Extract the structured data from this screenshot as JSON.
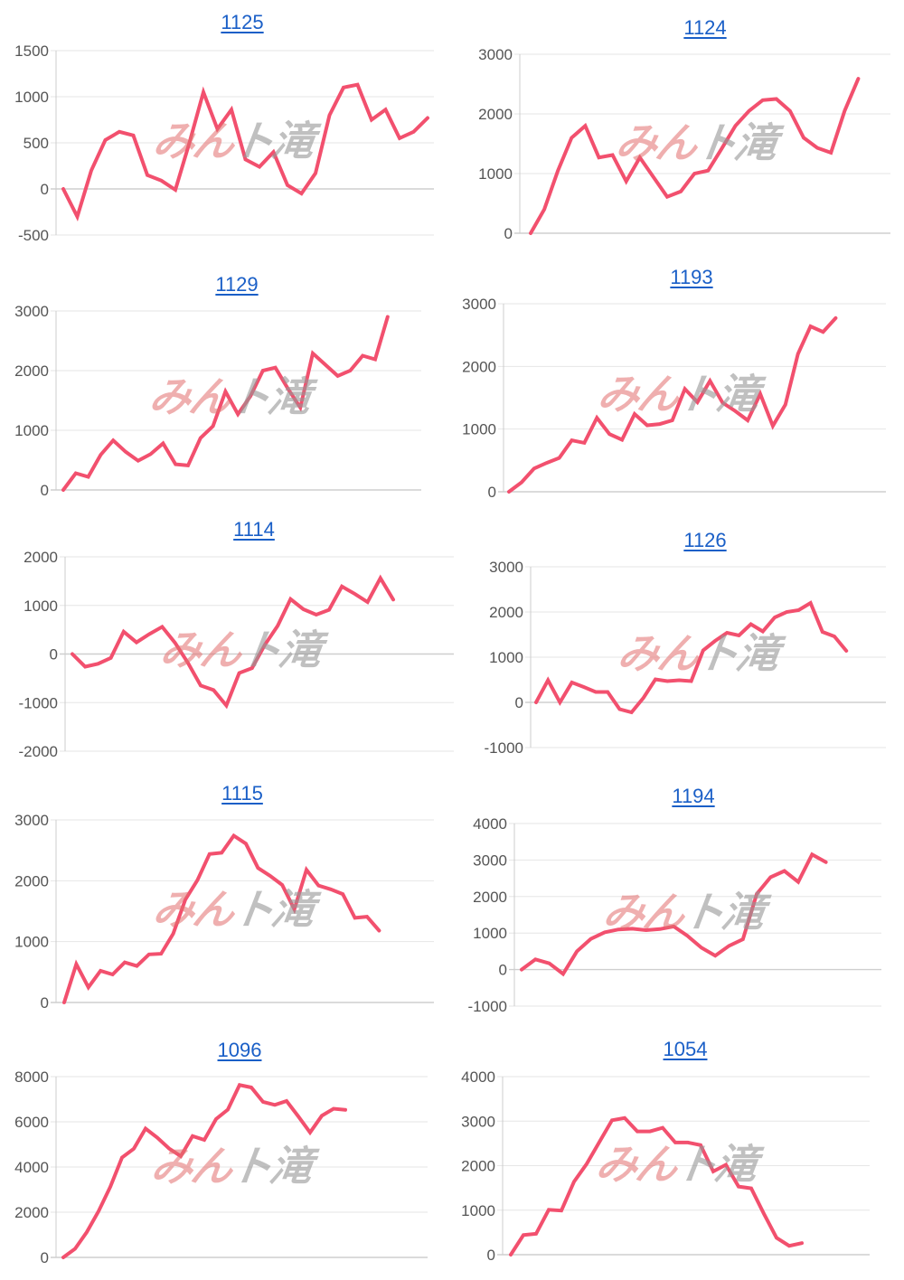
{
  "colors": {
    "line": "#f2506e",
    "grid": "#e6e6e6",
    "axis": "#cccccc",
    "tick_text": "#555555",
    "title_link": "#1a5fc7"
  },
  "watermark": {
    "part1": "みん",
    "part2": "ト滝"
  },
  "chart_data": [
    {
      "type": "line",
      "title": "1125",
      "yticks": [
        "1500",
        "1000",
        "500",
        "0",
        "-500"
      ],
      "ylim": [
        -500,
        1500
      ],
      "series": [
        {
          "name": "1125",
          "values": [
            0,
            -300,
            200,
            530,
            620,
            580,
            150,
            90,
            -10,
            500,
            1050,
            650,
            860,
            320,
            240,
            400,
            40,
            -50,
            170,
            800,
            1100,
            1130,
            750,
            860,
            550,
            620,
            770
          ]
        }
      ]
    },
    {
      "type": "line",
      "title": "1124",
      "yticks": [
        "3000",
        "2000",
        "1000",
        "0"
      ],
      "ylim": [
        0,
        3000
      ],
      "series": [
        {
          "name": "1124",
          "values": [
            0,
            400,
            1050,
            1600,
            1800,
            1270,
            1310,
            870,
            1270,
            940,
            610,
            700,
            1000,
            1050,
            1420,
            1800,
            2050,
            2230,
            2250,
            2050,
            1600,
            1430,
            1350,
            2050,
            2590
          ]
        }
      ]
    },
    {
      "type": "line",
      "title": "1129",
      "yticks": [
        "3000",
        "2000",
        "1000",
        "0"
      ],
      "ylim": [
        0,
        3000
      ],
      "series": [
        {
          "name": "1129",
          "values": [
            0,
            280,
            220,
            590,
            830,
            640,
            490,
            600,
            780,
            430,
            410,
            870,
            1070,
            1650,
            1270,
            1570,
            2000,
            2050,
            1700,
            1380,
            2290,
            2100,
            1910,
            2000,
            2250,
            2190,
            2900
          ]
        }
      ]
    },
    {
      "type": "line",
      "title": "1193",
      "yticks": [
        "3000",
        "2000",
        "1000",
        "0"
      ],
      "ylim": [
        0,
        3000
      ],
      "series": [
        {
          "name": "1193",
          "values": [
            0,
            150,
            370,
            460,
            540,
            820,
            780,
            1180,
            920,
            830,
            1240,
            1060,
            1080,
            1140,
            1640,
            1430,
            1770,
            1420,
            1290,
            1140,
            1560,
            1050,
            1390,
            2200,
            2640,
            2550,
            2770
          ]
        }
      ]
    },
    {
      "type": "line",
      "title": "1114",
      "yticks": [
        "2000",
        "1000",
        "0",
        "-1000",
        "-2000"
      ],
      "ylim": [
        -2000,
        2000
      ],
      "series": [
        {
          "name": "1114",
          "values": [
            0,
            -260,
            -200,
            -80,
            460,
            240,
            410,
            560,
            230,
            -180,
            -650,
            -740,
            -1060,
            -390,
            -290,
            190,
            580,
            1130,
            920,
            810,
            910,
            1390,
            1240,
            1070,
            1560,
            1120
          ]
        }
      ]
    },
    {
      "type": "line",
      "title": "1126",
      "yticks": [
        "3000",
        "2000",
        "1000",
        "0",
        "-1000"
      ],
      "ylim": [
        -1000,
        3000
      ],
      "series": [
        {
          "name": "1126",
          "values": [
            0,
            490,
            0,
            440,
            340,
            230,
            230,
            -150,
            -220,
            100,
            510,
            470,
            490,
            470,
            1150,
            1360,
            1540,
            1480,
            1730,
            1570,
            1880,
            2000,
            2040,
            2200,
            1560,
            1460,
            1140
          ]
        }
      ]
    },
    {
      "type": "line",
      "title": "1115",
      "yticks": [
        "3000",
        "2000",
        "1000",
        "0"
      ],
      "ylim": [
        0,
        3000
      ],
      "series": [
        {
          "name": "1115",
          "values": [
            0,
            630,
            250,
            520,
            460,
            660,
            600,
            790,
            800,
            1130,
            1690,
            2010,
            2440,
            2460,
            2740,
            2610,
            2210,
            2080,
            1930,
            1530,
            2180,
            1920,
            1860,
            1780,
            1390,
            1410,
            1180
          ]
        }
      ]
    },
    {
      "type": "line",
      "title": "1194",
      "yticks": [
        "4000",
        "3000",
        "2000",
        "1000",
        "0",
        "-1000"
      ],
      "ylim": [
        -1000,
        4000
      ],
      "series": [
        {
          "name": "1194",
          "values": [
            0,
            280,
            170,
            -120,
            500,
            840,
            1020,
            1100,
            1120,
            1080,
            1110,
            1180,
            920,
            600,
            380,
            650,
            830,
            2070,
            2530,
            2700,
            2400,
            3150,
            2940
          ]
        }
      ]
    },
    {
      "type": "line",
      "title": "1096",
      "yticks": [
        "8000",
        "6000",
        "4000",
        "2000",
        "0"
      ],
      "ylim": [
        0,
        8000
      ],
      "series": [
        {
          "name": "1096",
          "values": [
            0,
            380,
            1120,
            2040,
            3120,
            4420,
            4810,
            5700,
            5300,
            4820,
            4480,
            5370,
            5200,
            6120,
            6540,
            7630,
            7520,
            6880,
            6750,
            6920,
            6240,
            5530,
            6270,
            6580,
            6530
          ]
        }
      ]
    },
    {
      "type": "line",
      "title": "1054",
      "yticks": [
        "4000",
        "3000",
        "2000",
        "1000",
        "0"
      ],
      "ylim": [
        0,
        4000
      ],
      "series": [
        {
          "name": "1054",
          "values": [
            0,
            440,
            470,
            1010,
            990,
            1640,
            2040,
            2530,
            3020,
            3070,
            2770,
            2770,
            2850,
            2520,
            2520,
            2460,
            1870,
            2020,
            1530,
            1490,
            920,
            380,
            200,
            260
          ]
        }
      ]
    }
  ]
}
